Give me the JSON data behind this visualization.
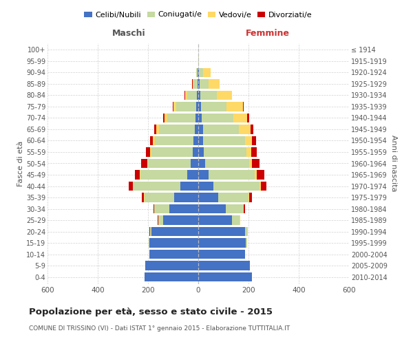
{
  "age_groups": [
    "0-4",
    "5-9",
    "10-14",
    "15-19",
    "20-24",
    "25-29",
    "30-34",
    "35-39",
    "40-44",
    "45-49",
    "50-54",
    "55-59",
    "60-64",
    "65-69",
    "70-74",
    "75-79",
    "80-84",
    "85-89",
    "90-94",
    "95-99",
    "100+"
  ],
  "birth_years": [
    "2010-2014",
    "2005-2009",
    "2000-2004",
    "1995-1999",
    "1990-1994",
    "1985-1989",
    "1980-1984",
    "1975-1979",
    "1970-1974",
    "1965-1969",
    "1960-1964",
    "1955-1959",
    "1950-1954",
    "1945-1949",
    "1940-1944",
    "1935-1939",
    "1930-1934",
    "1925-1929",
    "1920-1924",
    "1915-1919",
    "≤ 1914"
  ],
  "males": {
    "celibe": [
      215,
      210,
      195,
      195,
      185,
      140,
      115,
      95,
      70,
      45,
      30,
      22,
      18,
      15,
      12,
      8,
      5,
      3,
      2,
      0,
      0
    ],
    "coniugato": [
      0,
      0,
      0,
      2,
      8,
      20,
      60,
      120,
      190,
      185,
      170,
      165,
      155,
      140,
      110,
      80,
      40,
      15,
      5,
      1,
      0
    ],
    "vedovo": [
      0,
      0,
      0,
      0,
      0,
      0,
      0,
      1,
      1,
      2,
      3,
      5,
      8,
      12,
      12,
      10,
      8,
      5,
      2,
      0,
      0
    ],
    "divorziato": [
      0,
      0,
      0,
      0,
      1,
      2,
      4,
      8,
      15,
      20,
      25,
      15,
      10,
      8,
      5,
      3,
      2,
      1,
      0,
      0,
      0
    ]
  },
  "females": {
    "nubile": [
      215,
      205,
      185,
      190,
      185,
      135,
      110,
      80,
      60,
      40,
      28,
      22,
      20,
      18,
      15,
      12,
      8,
      5,
      3,
      0,
      0
    ],
    "coniugata": [
      0,
      0,
      0,
      5,
      12,
      30,
      70,
      120,
      185,
      185,
      175,
      170,
      165,
      145,
      125,
      100,
      65,
      35,
      15,
      2,
      0
    ],
    "vedova": [
      0,
      0,
      0,
      0,
      0,
      1,
      2,
      3,
      5,
      8,
      12,
      20,
      30,
      45,
      55,
      65,
      60,
      45,
      30,
      2,
      1
    ],
    "divorziata": [
      0,
      0,
      0,
      0,
      1,
      2,
      5,
      10,
      20,
      30,
      30,
      20,
      15,
      12,
      8,
      5,
      2,
      1,
      0,
      0,
      0
    ]
  },
  "colors": {
    "celibe": "#4472C4",
    "coniugato": "#c5d9a0",
    "vedovo": "#FFD966",
    "divorziato": "#CC0000"
  },
  "xlim": 600,
  "title": "Popolazione per età, sesso e stato civile - 2015",
  "subtitle": "COMUNE DI TRISSINO (VI) - Dati ISTAT 1° gennaio 2015 - Elaborazione TUTTITALIA.IT",
  "ylabel_left": "Fasce di età",
  "ylabel_right": "Anni di nascita",
  "xlabel_left": "Maschi",
  "xlabel_right": "Femmine",
  "legend_labels": [
    "Celibi/Nubili",
    "Coniugati/e",
    "Vedovi/e",
    "Divorziati/e"
  ],
  "background_color": "#ffffff",
  "grid_color": "#cccccc",
  "xticks": [
    -600,
    -400,
    -200,
    0,
    200,
    400,
    600
  ],
  "xticklabels": [
    "600",
    "400",
    "200",
    "0",
    "200",
    "400",
    "600"
  ]
}
